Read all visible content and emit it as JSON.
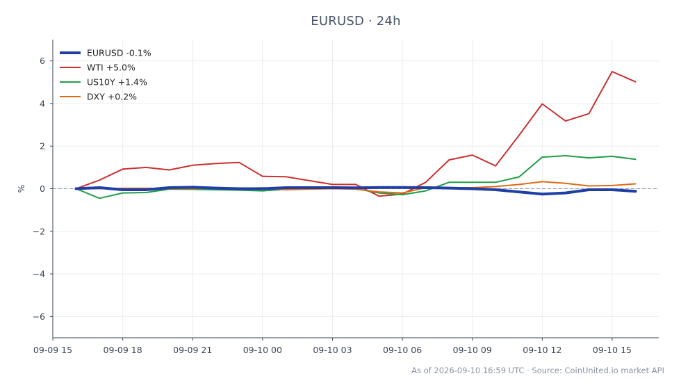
{
  "chart_data": {
    "type": "line",
    "title": "EURUSD · 24h",
    "xlabel": "",
    "ylabel": "%",
    "ylim": [
      -7,
      7
    ],
    "yticks": [
      -6,
      -4,
      -2,
      0,
      2,
      4,
      6
    ],
    "ytick_labels": [
      "−6",
      "−4",
      "−2",
      "0",
      "2",
      "4",
      "6"
    ],
    "xlim": [
      "2026-09-09 15:00",
      "2026-09-10 17:00"
    ],
    "xticks": [
      "2026-09-09 15:00",
      "2026-09-09 18:00",
      "2026-09-09 21:00",
      "2026-09-10 00:00",
      "2026-09-10 03:00",
      "2026-09-10 06:00",
      "2026-09-10 09:00",
      "2026-09-10 12:00",
      "2026-09-10 15:00"
    ],
    "xtick_labels": [
      "09-09 15",
      "09-09 18",
      "09-09 21",
      "09-10 00",
      "09-10 03",
      "09-10 06",
      "09-10 09",
      "09-10 12",
      "09-10 15"
    ],
    "x": [
      "2026-09-09 16:00",
      "2026-09-09 17:00",
      "2026-09-09 18:00",
      "2026-09-09 19:00",
      "2026-09-09 20:00",
      "2026-09-09 21:00",
      "2026-09-09 22:00",
      "2026-09-09 23:00",
      "2026-09-10 00:00",
      "2026-09-10 01:00",
      "2026-09-10 02:00",
      "2026-09-10 03:00",
      "2026-09-10 04:00",
      "2026-09-10 05:00",
      "2026-09-10 06:00",
      "2026-09-10 07:00",
      "2026-09-10 08:00",
      "2026-09-10 09:00",
      "2026-09-10 10:00",
      "2026-09-10 11:00",
      "2026-09-10 12:00",
      "2026-09-10 13:00",
      "2026-09-10 14:00",
      "2026-09-10 15:00",
      "2026-09-10 16:00"
    ],
    "series": [
      {
        "name": "EURUSD -0.1%",
        "color": "#1f3fa6",
        "width": 4,
        "values": [
          0.0,
          0.05,
          -0.05,
          -0.05,
          0.05,
          0.07,
          0.03,
          0.0,
          0.0,
          0.05,
          0.05,
          0.05,
          0.04,
          0.06,
          0.06,
          0.05,
          0.03,
          0.0,
          -0.05,
          -0.15,
          -0.25,
          -0.2,
          -0.05,
          -0.05,
          -0.12
        ]
      },
      {
        "name": "WTI +5.0%",
        "color": "#cc2f2f",
        "width": 2,
        "values": [
          0.0,
          0.4,
          0.92,
          1.0,
          0.88,
          1.1,
          1.18,
          1.23,
          0.58,
          0.56,
          0.38,
          0.2,
          0.2,
          -0.35,
          -0.25,
          0.3,
          1.35,
          1.58,
          1.07,
          2.5,
          3.98,
          3.18,
          3.52,
          5.5,
          5.02
        ]
      },
      {
        "name": "US10Y +1.4%",
        "color": "#1f9d46",
        "width": 2,
        "values": [
          0.0,
          -0.45,
          -0.2,
          -0.18,
          -0.02,
          -0.03,
          -0.05,
          -0.07,
          -0.1,
          -0.03,
          0.0,
          0.0,
          0.0,
          -0.2,
          -0.28,
          -0.1,
          0.3,
          0.3,
          0.3,
          0.55,
          1.48,
          1.55,
          1.45,
          1.52,
          1.38
        ]
      },
      {
        "name": "DXY +0.2%",
        "color": "#e06a14",
        "width": 2,
        "values": [
          0.0,
          0.0,
          0.02,
          0.02,
          0.0,
          0.0,
          0.03,
          0.02,
          0.04,
          -0.05,
          -0.02,
          0.0,
          -0.02,
          -0.15,
          -0.2,
          0.05,
          0.05,
          0.05,
          0.1,
          0.2,
          0.33,
          0.25,
          0.13,
          0.15,
          0.23
        ]
      }
    ],
    "grid": true,
    "zero_line": true,
    "legend_position": "top-left"
  },
  "footer": {
    "source_note": "As of 2026-09-10 16:59 UTC · Source: CoinUnited.io market API"
  }
}
